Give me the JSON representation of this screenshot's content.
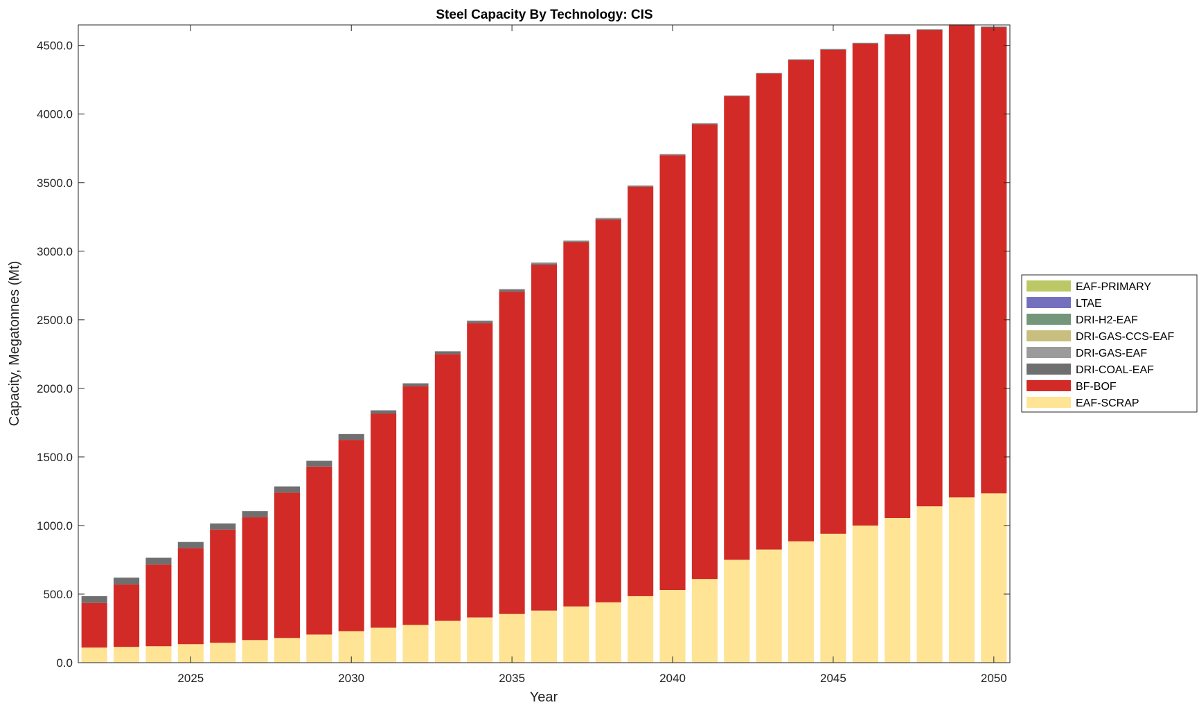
{
  "chart_data": {
    "type": "bar",
    "stacked": true,
    "title": "Steel Capacity By Technology: CIS",
    "xlabel": "Year",
    "ylabel": "Capacity, Megatonnes (Mt)",
    "x": [
      2022,
      2023,
      2024,
      2025,
      2026,
      2027,
      2028,
      2029,
      2030,
      2031,
      2032,
      2033,
      2034,
      2035,
      2036,
      2037,
      2038,
      2039,
      2040,
      2041,
      2042,
      2043,
      2044,
      2045,
      2046,
      2047,
      2048,
      2049,
      2050
    ],
    "xlim": [
      2021.5,
      2050.5
    ],
    "ylim": [
      0,
      4650
    ],
    "xticks": [
      2025,
      2030,
      2035,
      2040,
      2045,
      2050
    ],
    "xtick_labels": [
      "2025",
      "2030",
      "2035",
      "2040",
      "2045",
      "2050"
    ],
    "yticks": [
      0,
      500,
      1000,
      1500,
      2000,
      2500,
      3000,
      3500,
      4000,
      4500
    ],
    "ytick_labels": [
      "0.0",
      "500.0",
      "1000.0",
      "1500.0",
      "2000.0",
      "2500.0",
      "3000.0",
      "3500.0",
      "4000.0",
      "4500.0"
    ],
    "grid": false,
    "legend_position": "outside-right",
    "series": [
      {
        "name": "EAF-SCRAP",
        "color": "#FFE496",
        "values": [
          110,
          115,
          120,
          135,
          145,
          165,
          180,
          205,
          230,
          255,
          275,
          305,
          330,
          355,
          380,
          410,
          440,
          485,
          530,
          610,
          750,
          825,
          885,
          940,
          1000,
          1055,
          1140,
          1205,
          1235
        ]
      },
      {
        "name": "BF-BOF",
        "color": "#D22B27",
        "values": [
          325,
          455,
          595,
          700,
          825,
          895,
          1060,
          1225,
          1395,
          1560,
          1740,
          1945,
          2145,
          2350,
          2520,
          2655,
          2790,
          2985,
          3170,
          3315,
          3380,
          3470,
          3510,
          3530,
          3515,
          3525,
          3475,
          3445,
          3400
        ]
      },
      {
        "name": "DRI-COAL-EAF",
        "color": "#6F6F6F",
        "values": [
          50,
          50,
          50,
          45,
          45,
          45,
          45,
          42,
          42,
          25,
          20,
          18,
          15,
          14,
          12,
          8,
          8,
          6,
          5,
          5,
          3,
          3,
          2,
          2,
          2,
          2,
          1,
          1,
          1
        ]
      },
      {
        "name": "DRI-GAS-EAF",
        "color": "#9B9B9B",
        "values": [
          0,
          0,
          0,
          0,
          0,
          0,
          0,
          0,
          0,
          0,
          3,
          4,
          5,
          6,
          6,
          5,
          5,
          4,
          4,
          4,
          3,
          3,
          3,
          3,
          3,
          3,
          3,
          3,
          3
        ]
      },
      {
        "name": "DRI-GAS-CCS-EAF",
        "color": "#C8BE7D",
        "values": [
          0,
          0,
          0,
          0,
          0,
          0,
          0,
          0,
          0,
          0,
          0,
          0,
          0,
          0,
          0,
          0,
          0,
          0,
          0,
          0,
          0,
          0,
          0,
          0,
          0,
          0,
          0,
          0,
          0
        ]
      },
      {
        "name": "DRI-H2-EAF",
        "color": "#74967A",
        "values": [
          0,
          0,
          0,
          0,
          0,
          0,
          0,
          0,
          0,
          0,
          0,
          0,
          0,
          0,
          0,
          0,
          0,
          0,
          0,
          0,
          0,
          0,
          0,
          0,
          0,
          0,
          0,
          0,
          0
        ]
      },
      {
        "name": "LTAE",
        "color": "#7570BE",
        "values": [
          0,
          0,
          0,
          0,
          0,
          0,
          0,
          0,
          0,
          0,
          0,
          0,
          0,
          0,
          0,
          0,
          0,
          0,
          0,
          0,
          0,
          0,
          0,
          0,
          0,
          0,
          0,
          0,
          0
        ]
      },
      {
        "name": "EAF-PRIMARY",
        "color": "#BCC866",
        "values": [
          0,
          0,
          0,
          0,
          0,
          0,
          0,
          0,
          0,
          0,
          0,
          0,
          0,
          0,
          0,
          0,
          0,
          0,
          0,
          0,
          0,
          0,
          0,
          0,
          0,
          0,
          0,
          0,
          0
        ]
      }
    ],
    "legend_order": [
      "EAF-PRIMARY",
      "LTAE",
      "DRI-H2-EAF",
      "DRI-GAS-CCS-EAF",
      "DRI-GAS-EAF",
      "DRI-COAL-EAF",
      "BF-BOF",
      "EAF-SCRAP"
    ]
  }
}
